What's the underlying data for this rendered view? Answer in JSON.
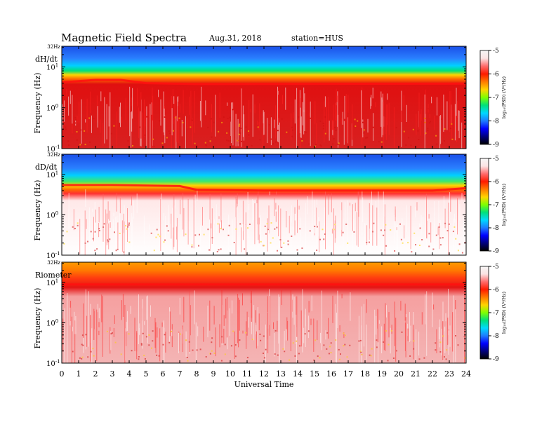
{
  "header": {
    "title": "Magnetic  Field  Spectra",
    "date": "Aug.31, 2018",
    "station": "station=HUS"
  },
  "colorbar": {
    "label": "log₁₀(PSD) (V²/Hz)",
    "ticks": [
      "-5",
      "-6",
      "-7",
      "-8",
      "-9"
    ],
    "colors": [
      "#f6f6f6",
      "#fbe3e3",
      "#ff6b6b",
      "#ff1a00",
      "#ff7a00",
      "#ffd400",
      "#7fff00",
      "#00e07a",
      "#00d8ff",
      "#1e7bff",
      "#0000ff",
      "#00007a",
      "#000000"
    ]
  },
  "chart_data": {
    "type": "heatmap",
    "xlabel": "Universal Time",
    "xticks": [
      "0",
      "1",
      "2",
      "3",
      "4",
      "5",
      "6",
      "7",
      "8",
      "9",
      "10",
      "11",
      "12",
      "13",
      "14",
      "15",
      "16",
      "17",
      "18",
      "19",
      "20",
      "21",
      "22",
      "23",
      "24"
    ],
    "xlim": [
      0,
      24
    ],
    "y_scale": "log",
    "ylim_hz": [
      0.1,
      32
    ],
    "panels": [
      {
        "name": "dH/dt",
        "ylabel": "Frequency  (Hz)",
        "top_label": "32Hz",
        "yticks": [
          {
            "mant": "10",
            "exp": "1",
            "value": 10
          },
          {
            "mant": "10",
            "exp": "0",
            "value": 1
          },
          {
            "mant": "10",
            "exp": "-1",
            "value": 0.1
          }
        ],
        "peak_band_hz": [
          [
            0,
            4.2
          ],
          [
            2,
            4.8
          ],
          [
            3.5,
            4.8
          ],
          [
            5,
            4.0
          ],
          [
            8,
            3.8
          ],
          [
            24,
            3.9
          ]
        ],
        "background": "#d21c1c"
      },
      {
        "name": "dD/dt",
        "ylabel": "Frequency  (Hz)",
        "top_label": "32Hz",
        "yticks": [
          {
            "mant": "10",
            "exp": "1",
            "value": 10
          },
          {
            "mant": "10",
            "exp": "0",
            "value": 1
          },
          {
            "mant": "10",
            "exp": "-1",
            "value": 0.1
          }
        ],
        "peak_band_hz": [
          [
            0,
            5.5
          ],
          [
            3,
            5.5
          ],
          [
            7,
            5.2
          ],
          [
            8,
            4.2
          ],
          [
            12,
            4.0
          ],
          [
            22,
            4.0
          ],
          [
            24,
            4.6
          ]
        ],
        "background": "#ffe0e0"
      },
      {
        "name": "Riometer",
        "ylabel": "Frequency  (Hz)",
        "top_label": "32Hz",
        "yticks": [
          {
            "mant": "10",
            "exp": "1",
            "value": 10
          },
          {
            "mant": "10",
            "exp": "0",
            "value": 1
          },
          {
            "mant": "10",
            "exp": "-1",
            "value": 0.1
          }
        ],
        "peak_band_hz": [
          [
            0,
            9
          ],
          [
            24,
            9
          ]
        ],
        "background": "#f2b0b0"
      }
    ]
  }
}
